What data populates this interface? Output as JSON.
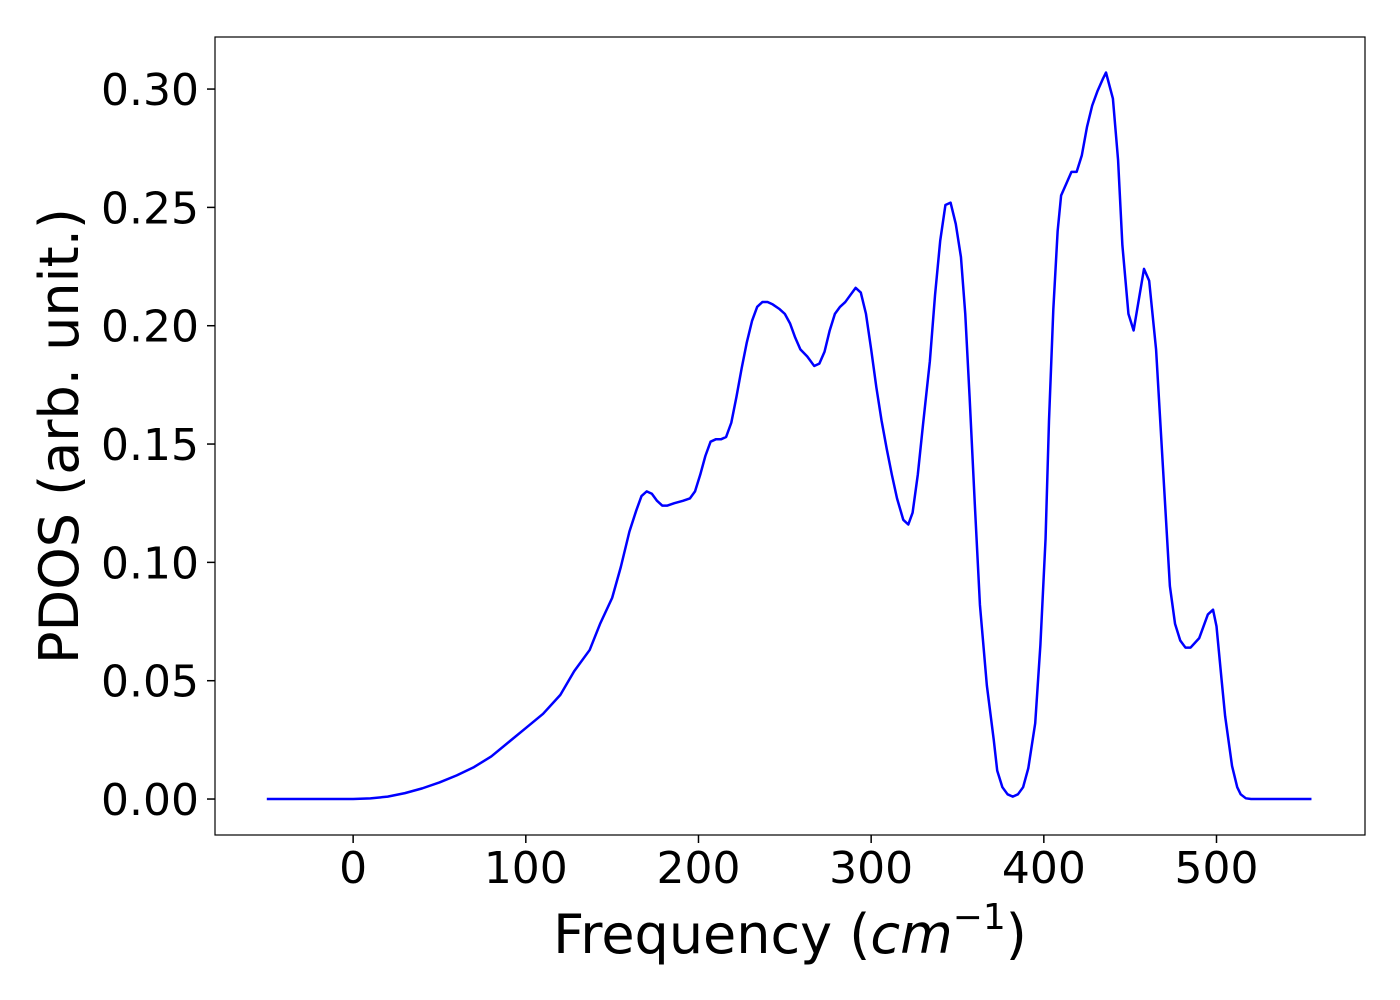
{
  "chart_data": {
    "type": "line",
    "xlabel": [
      "Frequency (",
      "cm",
      "−1",
      ")"
    ],
    "ylabel": "PDOS (arb. unit.)",
    "xlim": [
      -80,
      586
    ],
    "ylim": [
      -0.0152,
      0.322
    ],
    "xticks": [
      0,
      100,
      200,
      300,
      400,
      500
    ],
    "yticks": [
      {
        "value": 0,
        "label": "0.00"
      },
      {
        "value": 0.05,
        "label": "0.05"
      },
      {
        "value": 0.1,
        "label": "0.10"
      },
      {
        "value": 0.15,
        "label": "0.15"
      },
      {
        "value": 0.2,
        "label": "0.20"
      },
      {
        "value": 0.25,
        "label": "0.25"
      },
      {
        "value": 0.3,
        "label": "0.30"
      }
    ],
    "grid": false,
    "x": [
      -50,
      0,
      10,
      20,
      30,
      40,
      50,
      60,
      70,
      80,
      90,
      100,
      110,
      120,
      128,
      137,
      143,
      150,
      155,
      160,
      164,
      167,
      170,
      173,
      176,
      179,
      182,
      186,
      191,
      195,
      198,
      201,
      204,
      207,
      210,
      213,
      216,
      219,
      222,
      225,
      228,
      231,
      234,
      237,
      240,
      243,
      247,
      250,
      253,
      256,
      259,
      263,
      267,
      270,
      273,
      276,
      279,
      282,
      285,
      288,
      291,
      294,
      297,
      300,
      303,
      306,
      309,
      312,
      315,
      318.6,
      321.5,
      324,
      327,
      330,
      334,
      337,
      340,
      343,
      346,
      349,
      352,
      354.5,
      357,
      360,
      363,
      367,
      371,
      373,
      376,
      379,
      382,
      385,
      388,
      391,
      395,
      398,
      401,
      403,
      405.5,
      408,
      410,
      413,
      416,
      419,
      422,
      425,
      428,
      431,
      434,
      436,
      440,
      443,
      445.5,
      449,
      452,
      455,
      458,
      461,
      465,
      469,
      473,
      476,
      479,
      482,
      485,
      490,
      495,
      498,
      500,
      503,
      505,
      509,
      512,
      514,
      517,
      520,
      555
    ],
    "series": [
      {
        "name": "PDOS",
        "color": "#0000ff",
        "values": [
          0,
          0,
          0.0003,
          0.001,
          0.0025,
          0.0045,
          0.007,
          0.01,
          0.0135,
          0.018,
          0.024,
          0.03,
          0.036,
          0.044,
          0.054,
          0.063,
          0.074,
          0.085,
          0.098,
          0.113,
          0.122,
          0.128,
          0.13,
          0.129,
          0.126,
          0.124,
          0.124,
          0.125,
          0.126,
          0.127,
          0.13,
          0.137,
          0.145,
          0.151,
          0.152,
          0.152,
          0.153,
          0.159,
          0.17,
          0.182,
          0.193,
          0.202,
          0.208,
          0.21,
          0.21,
          0.209,
          0.207,
          0.205,
          0.201,
          0.195,
          0.19,
          0.187,
          0.183,
          0.184,
          0.189,
          0.198,
          0.205,
          0.208,
          0.21,
          0.213,
          0.216,
          0.214,
          0.205,
          0.19,
          0.174,
          0.16,
          0.148,
          0.137,
          0.127,
          0.118,
          0.116,
          0.121,
          0.137,
          0.158,
          0.185,
          0.213,
          0.236,
          0.251,
          0.252,
          0.243,
          0.229,
          0.205,
          0.17,
          0.125,
          0.082,
          0.048,
          0.025,
          0.012,
          0.005,
          0.002,
          0.001,
          0.002,
          0.005,
          0.013,
          0.032,
          0.065,
          0.11,
          0.16,
          0.207,
          0.24,
          0.255,
          0.26,
          0.265,
          0.265,
          0.272,
          0.284,
          0.293,
          0.299,
          0.304,
          0.307,
          0.296,
          0.27,
          0.234,
          0.205,
          0.198,
          0.211,
          0.224,
          0.219,
          0.19,
          0.14,
          0.09,
          0.074,
          0.067,
          0.064,
          0.064,
          0.068,
          0.078,
          0.08,
          0.073,
          0.05,
          0.035,
          0.014,
          0.005,
          0.002,
          0.0003,
          0,
          0
        ]
      }
    ]
  }
}
